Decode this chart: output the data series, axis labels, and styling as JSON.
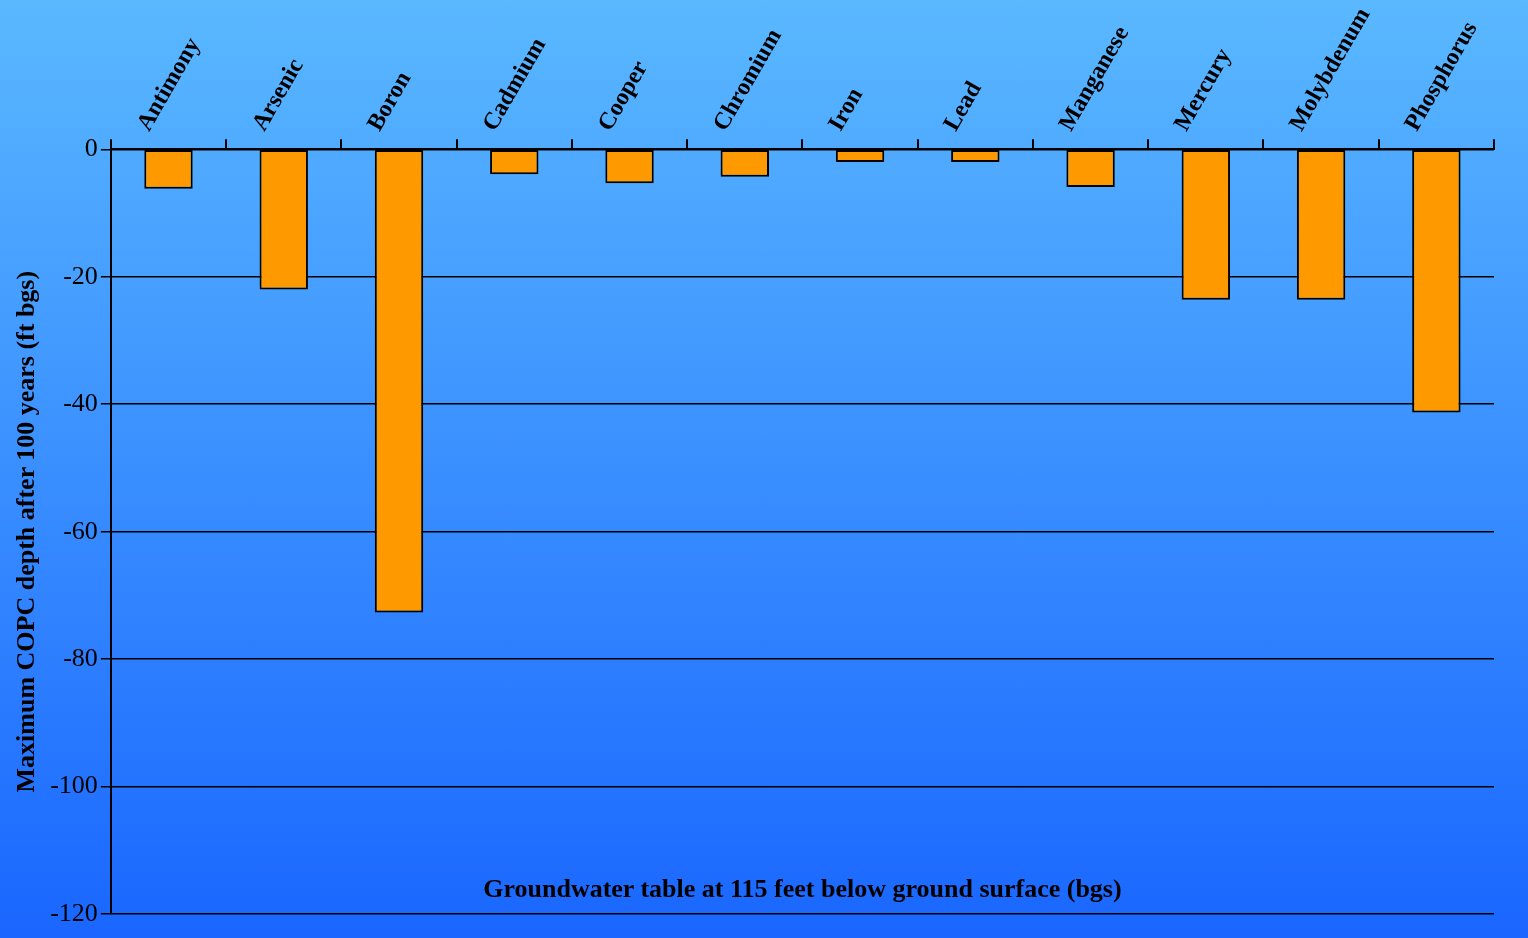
{
  "chart_data": {
    "type": "bar",
    "ylabel": "Maximum COPC depth after 100 years (ft bgs)",
    "categories": [
      "Antimony",
      "Arsenic",
      "Boron",
      "Cadmium",
      "Cooper",
      "Chromium",
      "Iron",
      "Lead",
      "Manganese",
      "Mercury",
      "Molybdenum",
      "Phosphorus"
    ],
    "values": [
      -6.2,
      -22,
      -72.7,
      -3.9,
      -5.3,
      -4.3,
      -2,
      -2,
      -5.9,
      -23.6,
      -23.6,
      -41.3
    ],
    "color": "#ff9900",
    "ylim": [
      -120,
      0
    ],
    "yticks": [
      -120,
      -100,
      -80,
      -60,
      -40,
      -20,
      0
    ],
    "grid": "y",
    "legend": false,
    "annotations": [
      "Groundwater table at 115 feet below ground surface (bgs)"
    ]
  }
}
